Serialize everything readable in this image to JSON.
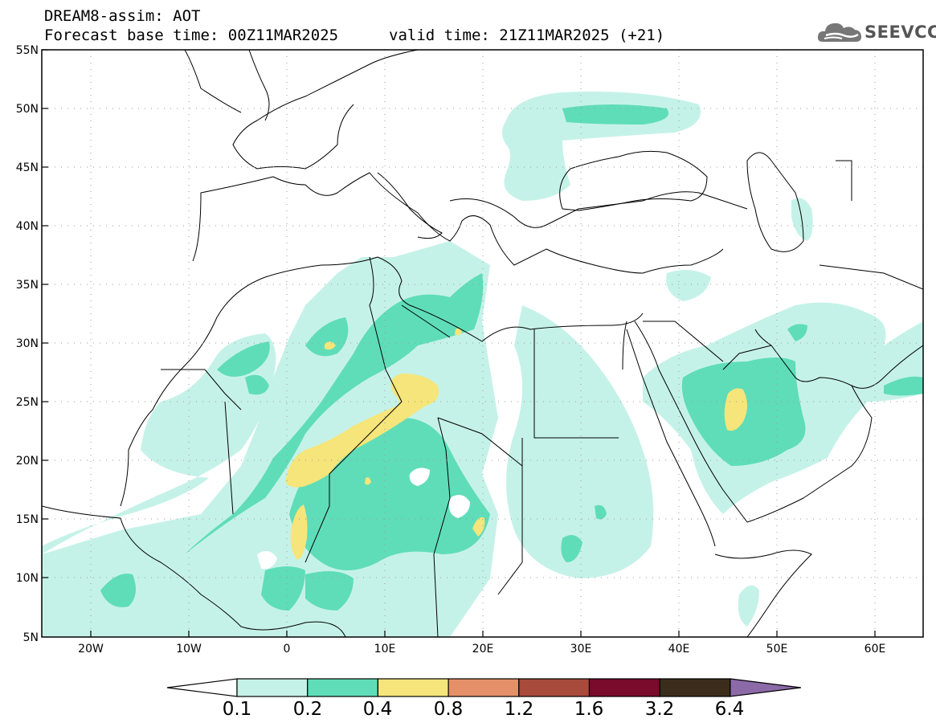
{
  "header": {
    "title": "DREAM8-assim: AOT",
    "base_time": "Forecast base time: 00Z11MAR2025",
    "valid_time": "valid time: 21Z11MAR2025 (+21)"
  },
  "logo": {
    "text": "SEEVCCC",
    "icon": "cloud-icon"
  },
  "map": {
    "region": "North Africa, Europe and Middle East",
    "lon_range": [
      -25,
      65
    ],
    "lat_range": [
      5,
      55
    ],
    "lat_labels": [
      "55N",
      "50N",
      "45N",
      "40N",
      "35N",
      "30N",
      "25N",
      "20N",
      "15N",
      "10N",
      "5N"
    ],
    "lon_labels": [
      "20W",
      "10W",
      "0",
      "10E",
      "20E",
      "30E",
      "40E",
      "50E",
      "60E"
    ],
    "grid": "dotted"
  },
  "colorbar": {
    "labels": [
      "0.1",
      "0.2",
      "0.4",
      "0.8",
      "1.2",
      "1.6",
      "3.2",
      "6.4"
    ],
    "colors": [
      "#ffffff",
      "#c5f2e8",
      "#5fddb8",
      "#f5e57a",
      "#e6906a",
      "#a84a3c",
      "#7a0b2d",
      "#3b2c1c",
      "#8c6aa8"
    ]
  }
}
